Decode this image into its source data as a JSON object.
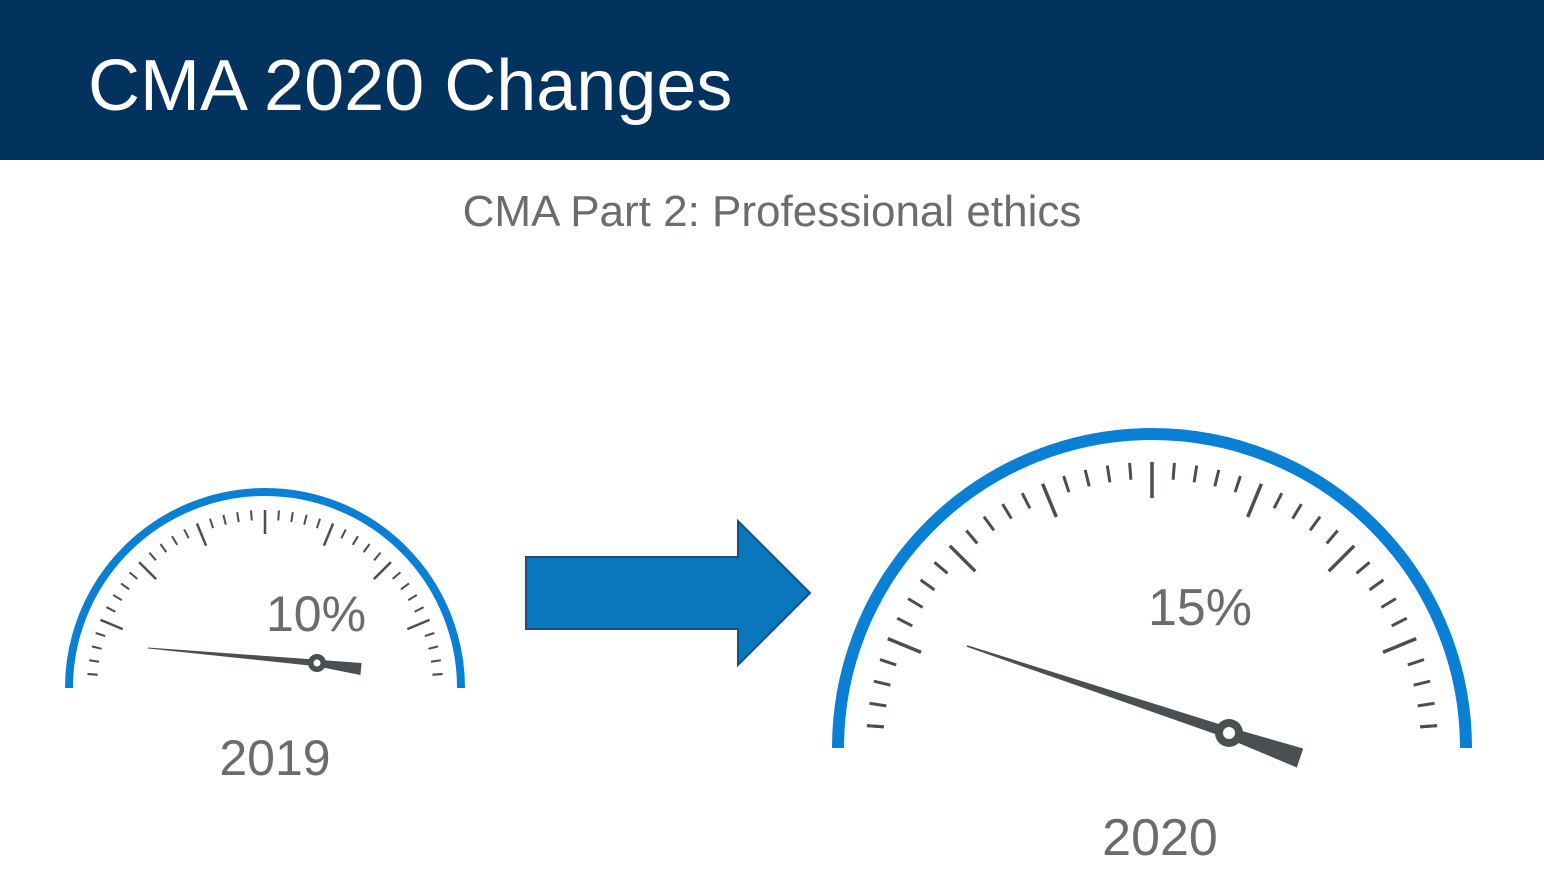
{
  "slide": {
    "title": "CMA 2020 Changes",
    "subtitle": "CMA Part 2: Professional ethics"
  },
  "gauges": [
    {
      "year": "2019",
      "percent_label": "10%",
      "value_percent": 10
    },
    {
      "year": "2020",
      "percent_label": "15%",
      "value_percent": 15
    }
  ],
  "colors": {
    "title_bar": "#02325e",
    "gauge_arc": "#0a80d4",
    "needle": "#4a4f52",
    "tick": "#4a4f52",
    "arrow_fill": "#0a77bd",
    "arrow_stroke": "#1c4e80",
    "text_gray": "#6a6d70"
  },
  "icons": {
    "arrow": "right-arrow-icon"
  }
}
